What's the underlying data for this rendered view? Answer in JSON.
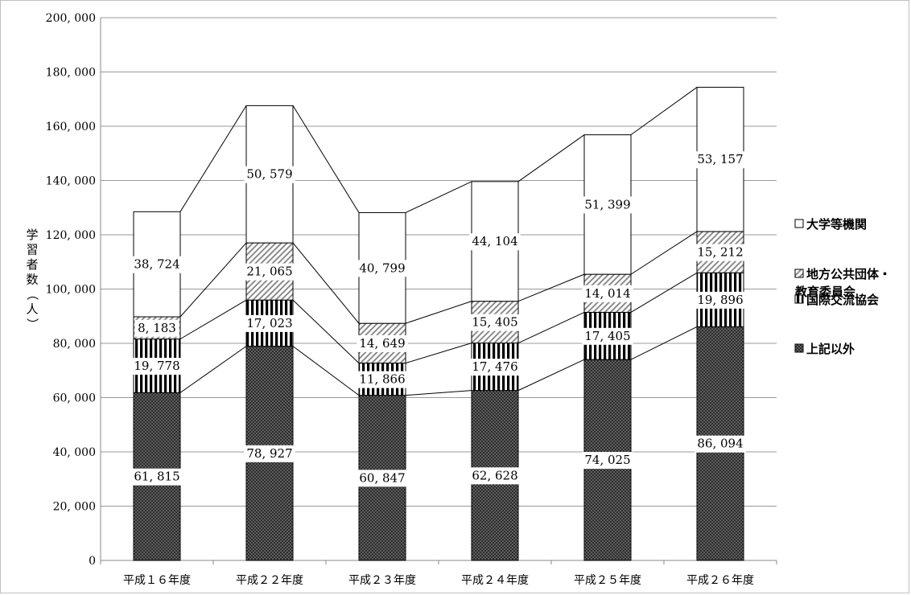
{
  "chart_data": {
    "type": "bar",
    "stacked": true,
    "categories": [
      "平成１６年度",
      "平成２２年度",
      "平成２３年度",
      "平成２４年度",
      "平成２５年度",
      "平成２６年度"
    ],
    "series": [
      {
        "name": "上記以外",
        "pattern": "dots",
        "values": [
          61815,
          78927,
          60847,
          62628,
          74025,
          86094
        ],
        "labels": [
          "61, 815",
          "78, 927",
          "60, 847",
          "62, 628",
          "74, 025",
          "86, 094"
        ]
      },
      {
        "name": "国際交流協会",
        "pattern": "vertical-stripes",
        "values": [
          19778,
          17023,
          11866,
          17476,
          17405,
          19896
        ],
        "labels": [
          "19, 778",
          "17, 023",
          "11, 866",
          "17, 476",
          "17, 405",
          "19, 896"
        ]
      },
      {
        "name": "地方公共団体・教育委員会",
        "legend_lines": [
          "地方公共団体・",
          "教育委員会"
        ],
        "pattern": "diagonal-hatch",
        "values": [
          8183,
          21065,
          14649,
          15405,
          14014,
          15212
        ],
        "labels": [
          "8, 183",
          "21, 065",
          "14, 649",
          "15, 405",
          "14, 014",
          "15, 212"
        ]
      },
      {
        "name": "大学等機関",
        "pattern": "empty",
        "values": [
          38724,
          50579,
          40799,
          44104,
          51399,
          53157
        ],
        "labels": [
          "38, 724",
          "50, 579",
          "40, 799",
          "44, 104",
          "51, 399",
          "53, 157"
        ]
      }
    ],
    "legend_order": [
      3,
      2,
      1,
      0
    ],
    "ylabel": "学習者数（人）",
    "xlabel": "",
    "ylim": [
      0,
      200000
    ],
    "ytick_step": 20000,
    "ytick_labels": [
      "0",
      "20, 000",
      "40, 000",
      "60, 000",
      "80, 000",
      "100, 000",
      "120, 000",
      "140, 000",
      "160, 000",
      "180, 000",
      "200, 000"
    ],
    "grid": true,
    "legend_position": "right",
    "series_lines": true,
    "colors": {
      "bar_fill": "#2b2b2b",
      "dot": "#9a9a9a",
      "stroke": "#000000",
      "grid": "#999999"
    }
  }
}
